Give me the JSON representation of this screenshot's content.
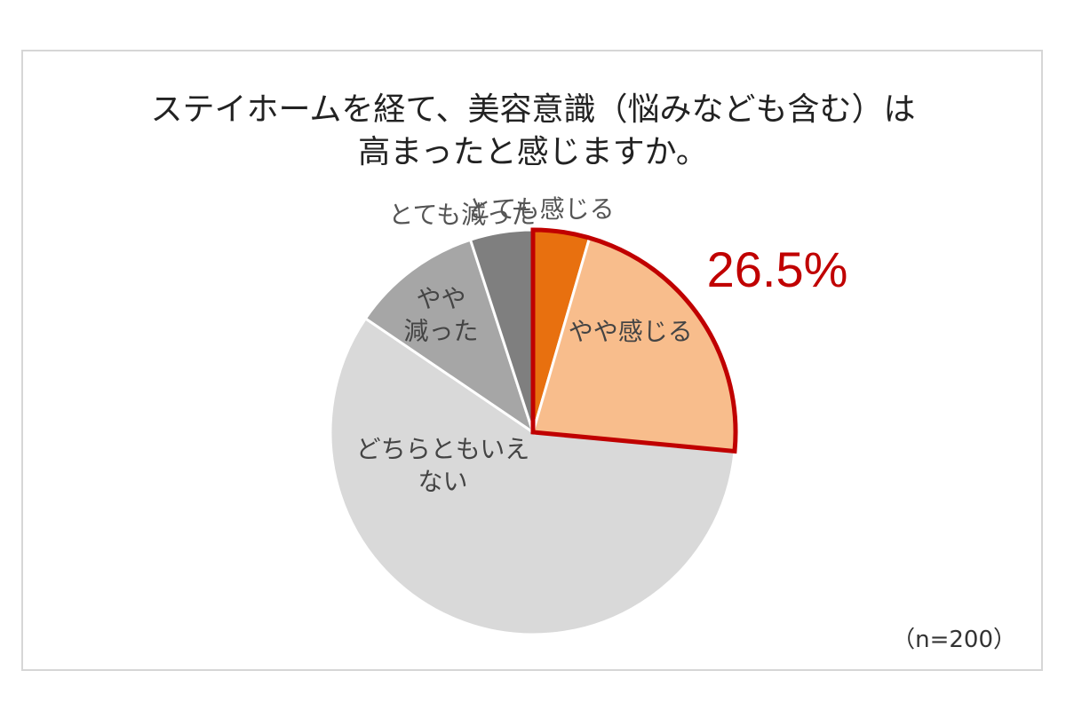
{
  "chart_data": {
    "type": "pie",
    "title_lines": [
      "ステイホームを経て、美容意識（悩みなども含む）は",
      "高まったと感じますか。"
    ],
    "slices": [
      {
        "label_lines": [
          "とても感じる"
        ],
        "value": 4.5,
        "color": "#e8700f",
        "label_color": "#555555"
      },
      {
        "label_lines": [
          "やや感じる"
        ],
        "value": 22.0,
        "color": "#f8bd8c",
        "label_color": "#444444"
      },
      {
        "label_lines": [
          "どちらともいえ",
          "ない"
        ],
        "value": 58.0,
        "color": "#d9d9d9",
        "label_color": "#444444"
      },
      {
        "label_lines": [
          "やや",
          "減った"
        ],
        "value": 10.5,
        "color": "#a6a6a6",
        "label_color": "#444444"
      },
      {
        "label_lines": [
          "とても減った"
        ],
        "value": 5.0,
        "color": "#7f7f7f",
        "label_color": "#555555"
      }
    ],
    "highlight": {
      "text": "26.5%",
      "color": "#c00000",
      "covers_slices": [
        "とても感じる",
        "やや感じる"
      ]
    },
    "sample_note": "（n=200）"
  }
}
